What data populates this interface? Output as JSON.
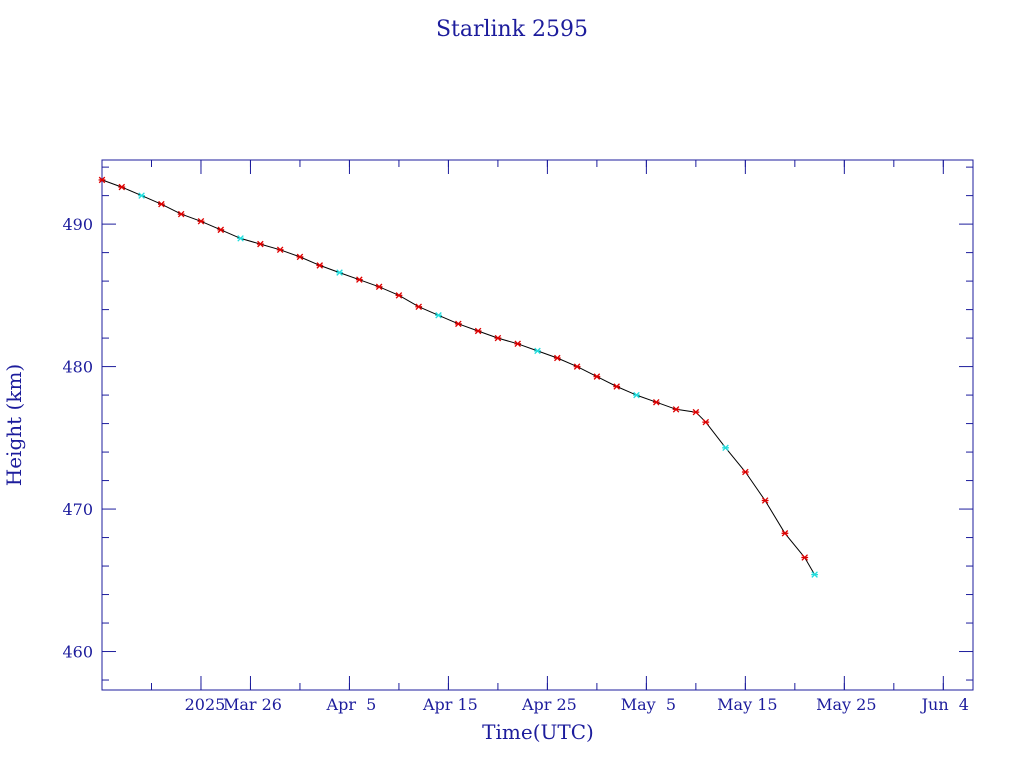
{
  "chart_data": {
    "type": "line",
    "title": "Starlink 2595",
    "xlabel": "Time(UTC)",
    "ylabel": "Height (km)",
    "x_unit": "date (UTC, 2025)",
    "xlim": [
      "2025-03-11",
      "2025-06-07"
    ],
    "ylim": [
      457.3,
      494.5
    ],
    "x_ticks": [
      {
        "date": "2025-03-21",
        "label": "2025"
      },
      {
        "date": "2025-03-26",
        "label": "Mar 26"
      },
      {
        "date": "2025-04-05",
        "label": "Apr  5"
      },
      {
        "date": "2025-04-15",
        "label": "Apr 15"
      },
      {
        "date": "2025-04-25",
        "label": "Apr 25"
      },
      {
        "date": "2025-05-05",
        "label": "May  5"
      },
      {
        "date": "2025-05-15",
        "label": "May 15"
      },
      {
        "date": "2025-05-25",
        "label": "May 25"
      },
      {
        "date": "2025-06-04",
        "label": "Jun  4"
      }
    ],
    "y_ticks": [
      460,
      470,
      480,
      490
    ],
    "y_major_step": 10,
    "y_minor_step": 2,
    "x_minor_step_days": 5,
    "grid": false,
    "colors": {
      "axis": "#1c1c9c",
      "line": "#000000",
      "marker": "#dd0000",
      "marker_alt": "#22dddd"
    },
    "series": [
      {
        "marker": "asterisk",
        "points": [
          [
            "2025-03-11",
            493.1
          ],
          [
            "2025-03-13",
            492.6
          ],
          [
            "2025-03-15",
            492.0
          ],
          [
            "2025-03-17",
            491.4
          ],
          [
            "2025-03-19",
            490.7
          ],
          [
            "2025-03-21",
            490.2
          ],
          [
            "2025-03-23",
            489.6
          ],
          [
            "2025-03-25",
            489.0
          ],
          [
            "2025-03-27",
            488.6
          ],
          [
            "2025-03-29",
            488.2
          ],
          [
            "2025-03-31",
            487.7
          ],
          [
            "2025-04-02",
            487.1
          ],
          [
            "2025-04-04",
            486.6
          ],
          [
            "2025-04-06",
            486.1
          ],
          [
            "2025-04-08",
            485.6
          ],
          [
            "2025-04-10",
            485.0
          ],
          [
            "2025-04-12",
            484.2
          ],
          [
            "2025-04-14",
            483.6
          ],
          [
            "2025-04-16",
            483.0
          ],
          [
            "2025-04-18",
            482.5
          ],
          [
            "2025-04-20",
            482.0
          ],
          [
            "2025-04-22",
            481.6
          ],
          [
            "2025-04-24",
            481.1
          ],
          [
            "2025-04-26",
            480.6
          ],
          [
            "2025-04-28",
            480.0
          ],
          [
            "2025-04-30",
            479.3
          ],
          [
            "2025-05-02",
            478.6
          ],
          [
            "2025-05-04",
            478.0
          ],
          [
            "2025-05-06",
            477.5
          ],
          [
            "2025-05-08",
            477.0
          ],
          [
            "2025-05-10",
            476.8
          ],
          [
            "2025-05-11",
            476.1
          ],
          [
            "2025-05-13",
            474.3
          ],
          [
            "2025-05-15",
            472.6
          ],
          [
            "2025-05-17",
            470.6
          ],
          [
            "2025-05-19",
            468.3
          ],
          [
            "2025-05-21",
            466.6
          ],
          [
            "2025-05-22",
            465.4
          ]
        ]
      }
    ]
  }
}
